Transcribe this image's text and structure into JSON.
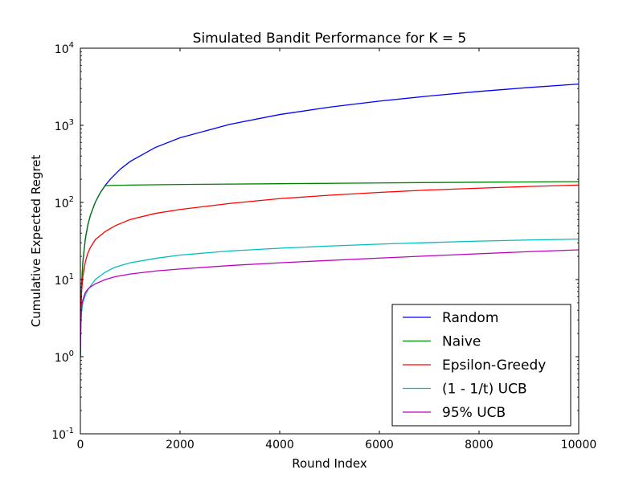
{
  "chart_data": {
    "type": "line",
    "title": "Simulated Bandit Performance for K = 5",
    "xlabel": "Round Index",
    "ylabel": "Cumulative Expected Regret",
    "yscale": "log",
    "xlim": [
      0,
      10000
    ],
    "ylim": [
      0.1,
      10000
    ],
    "grid": false,
    "legend_position": "bottom-right",
    "x_ticks": [
      0,
      2000,
      4000,
      6000,
      8000,
      10000
    ],
    "x_tick_labels": [
      "0",
      "2000",
      "4000",
      "6000",
      "8000",
      "10000"
    ],
    "y_ticks": [
      0.1,
      1,
      10,
      100,
      1000,
      10000
    ],
    "y_tick_labels": [
      {
        "base": "10",
        "exp": "-1"
      },
      {
        "base": "10",
        "exp": "0"
      },
      {
        "base": "10",
        "exp": "1"
      },
      {
        "base": "10",
        "exp": "2"
      },
      {
        "base": "10",
        "exp": "3"
      },
      {
        "base": "10",
        "exp": "4"
      }
    ],
    "series": [
      {
        "name": "Random",
        "color": "#0000ff",
        "x": [
          1,
          10,
          25,
          50,
          100,
          150,
          200,
          300,
          400,
          500,
          600,
          800,
          1000,
          1500,
          2000,
          3000,
          4000,
          5000,
          6000,
          7000,
          8000,
          9000,
          10000
        ],
        "y": [
          1,
          3.5,
          8.5,
          17,
          34,
          51,
          68,
          101,
          134,
          167,
          200,
          270,
          340,
          515,
          690,
          1030,
          1380,
          1720,
          2060,
          2400,
          2750,
          3090,
          3430
        ]
      },
      {
        "name": "Naive",
        "color": "#008000",
        "x": [
          1,
          10,
          25,
          50,
          100,
          150,
          200,
          300,
          400,
          500,
          600,
          1000,
          2000,
          4000,
          6000,
          8000,
          10000
        ],
        "y": [
          1,
          3.5,
          8.5,
          17,
          34,
          51,
          68,
          101,
          134,
          165,
          166,
          168,
          171,
          175,
          179,
          183,
          186
        ]
      },
      {
        "name": "Epsilon-Greedy",
        "color": "#ff0000",
        "x": [
          1,
          10,
          25,
          50,
          100,
          150,
          200,
          300,
          500,
          700,
          1000,
          1500,
          2000,
          3000,
          4000,
          5000,
          6000,
          7000,
          8000,
          9000,
          10000
        ],
        "y": [
          1.5,
          4,
          7,
          11,
          17,
          22,
          26,
          33,
          42,
          50,
          60,
          72,
          81,
          97,
          112,
          124,
          135,
          145,
          153,
          161,
          168
        ]
      },
      {
        "name": "(1 - 1/t) UCB",
        "color": "#00bfbf",
        "x": [
          1,
          10,
          25,
          50,
          100,
          150,
          200,
          300,
          500,
          700,
          1000,
          1500,
          2000,
          3000,
          4000,
          5000,
          6000,
          7000,
          8000,
          9000,
          10000
        ],
        "y": [
          1.2,
          2.5,
          3.8,
          5,
          6.3,
          7.3,
          8.2,
          10,
          12.5,
          14.5,
          16.5,
          18.8,
          20.8,
          23.5,
          25.5,
          27.2,
          28.8,
          30.2,
          31.5,
          32.6,
          33.5
        ]
      },
      {
        "name": "95% UCB",
        "color": "#bf00bf",
        "x": [
          1,
          10,
          25,
          50,
          100,
          150,
          200,
          300,
          500,
          700,
          1000,
          1500,
          2000,
          3000,
          4000,
          5000,
          6000,
          7000,
          8000,
          9000,
          10000
        ],
        "y": [
          1.2,
          3,
          4.5,
          5.5,
          6.8,
          7.5,
          8,
          8.8,
          10,
          10.9,
          11.8,
          12.9,
          13.7,
          15.2,
          16.5,
          17.7,
          19,
          20.3,
          21.6,
          23,
          24.3
        ]
      }
    ]
  }
}
